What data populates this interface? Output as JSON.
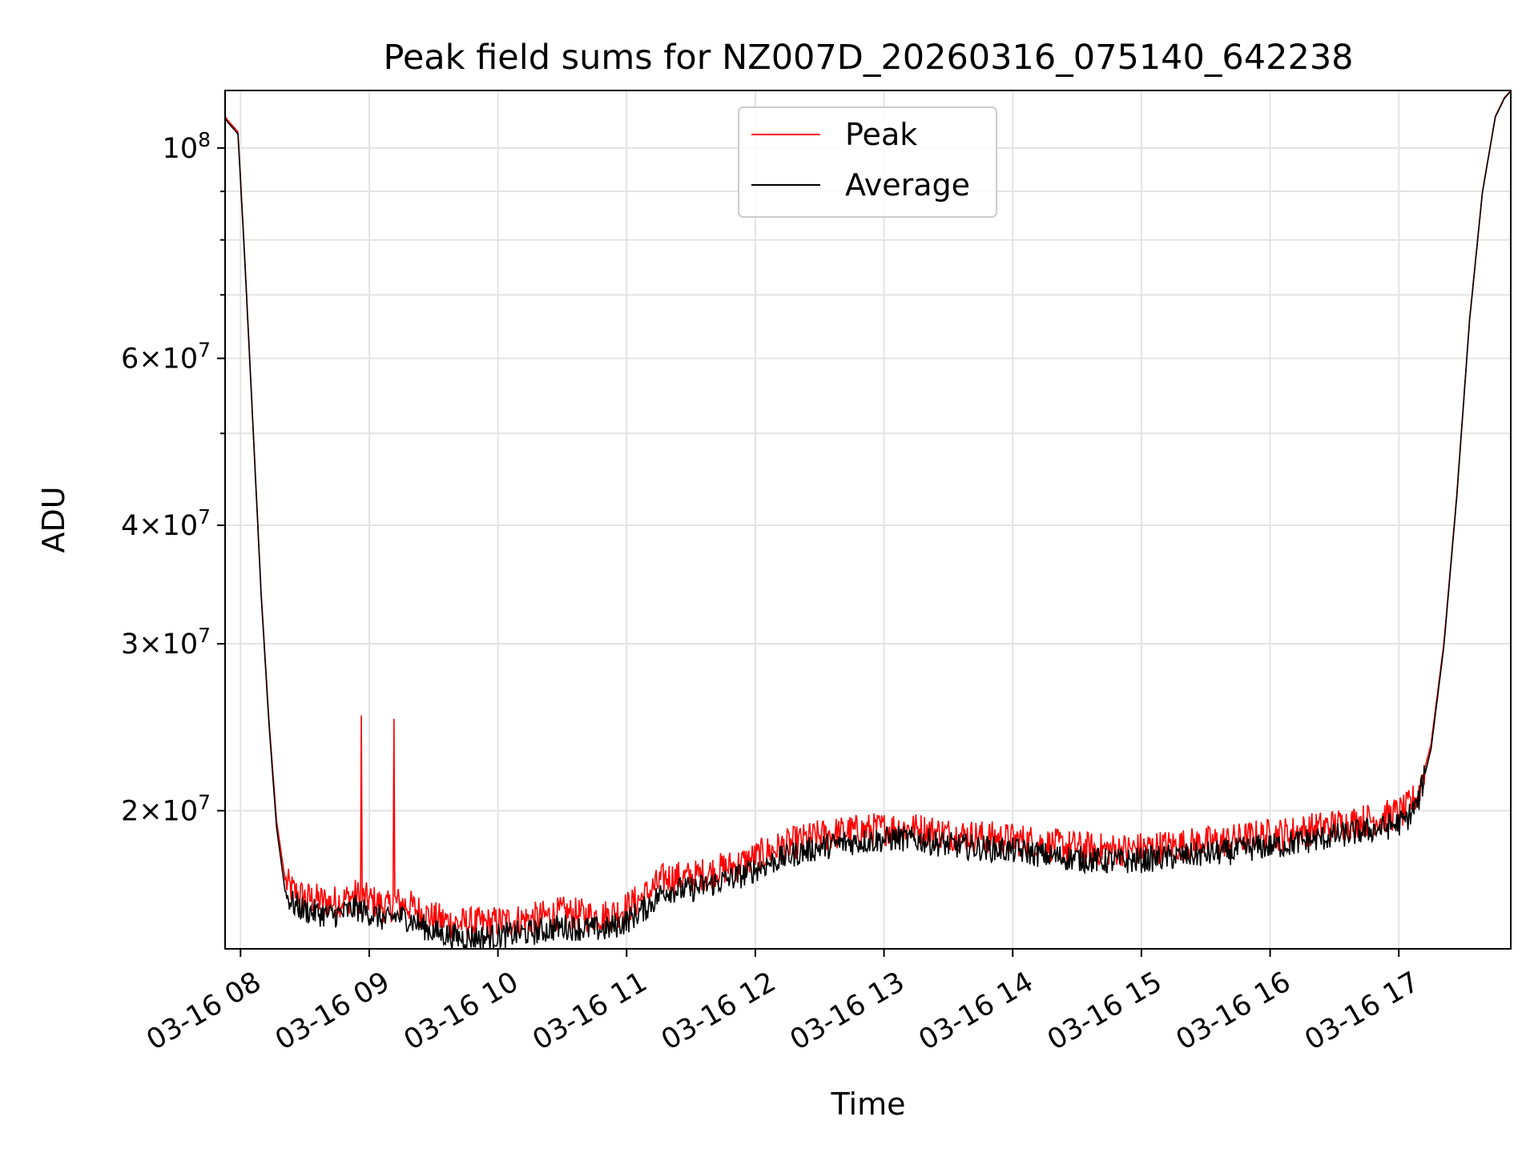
{
  "chart_data": {
    "type": "line",
    "title": "Peak field sums for NZ007D_20260316_075140_642238",
    "xlabel": "Time",
    "ylabel": "ADU",
    "yscale": "log",
    "grid": true,
    "legend_position": "top-center",
    "colors": {
      "peak": "#ff0000",
      "average": "#000000",
      "grid": "#e3e3e3"
    },
    "x_unit": "hour of day (2026-03-16)",
    "xlim": [
      7.88,
      17.87
    ],
    "ylim": [
      14300000,
      115000000
    ],
    "x_tick_values": [
      8,
      9,
      10,
      11,
      12,
      13,
      14,
      15,
      16,
      17
    ],
    "x_tick_labels": [
      "03-16 08",
      "03-16 09",
      "03-16 10",
      "03-16 11",
      "03-16 12",
      "03-16 13",
      "03-16 14",
      "03-16 15",
      "03-16 16",
      "03-16 17"
    ],
    "y_ticks": [
      {
        "value": 20000000,
        "mantissa": "2",
        "exponent": "7"
      },
      {
        "value": 30000000,
        "mantissa": "3",
        "exponent": "7"
      },
      {
        "value": 40000000,
        "mantissa": "4",
        "exponent": "7"
      },
      {
        "value": 60000000,
        "mantissa": "6",
        "exponent": "7"
      },
      {
        "value": 100000000,
        "mantissa": "",
        "exponent": "8"
      }
    ],
    "y_minor_ticks": [
      50000000,
      70000000,
      80000000,
      90000000
    ],
    "series": [
      {
        "name": "Peak",
        "x": [
          7.88,
          7.9,
          7.98,
          8.03,
          8.1,
          8.16,
          8.22,
          8.28,
          8.35,
          8.42,
          8.5,
          8.6,
          8.7,
          8.8,
          8.9,
          8.93,
          9.0,
          9.15,
          9.2,
          9.3,
          9.5,
          9.7,
          9.9,
          10.1,
          10.3,
          10.5,
          10.7,
          10.85,
          11.0,
          11.15,
          11.3,
          11.5,
          11.7,
          11.9,
          12.1,
          12.3,
          12.5,
          12.7,
          12.9,
          13.1,
          13.3,
          13.5,
          13.7,
          13.9,
          14.1,
          14.3,
          14.5,
          14.7,
          14.9,
          15.1,
          15.3,
          15.5,
          15.7,
          15.9,
          16.1,
          16.3,
          16.5,
          16.7,
          16.9,
          17.05,
          17.15,
          17.25,
          17.35,
          17.45,
          17.55,
          17.65,
          17.75,
          17.82,
          17.87
        ],
        "values": [
          108000000,
          107000000,
          104000000,
          78000000,
          50000000,
          34000000,
          25000000,
          19500000,
          16800000,
          16400000,
          16200000,
          16100000,
          16000000,
          16100000,
          16300000,
          16200000,
          16100000,
          15800000,
          16000000,
          15900000,
          15400000,
          15200000,
          15200000,
          15300000,
          15400000,
          15600000,
          15500000,
          15500000,
          15800000,
          16300000,
          17000000,
          17000000,
          17300000,
          17600000,
          18100000,
          18500000,
          18800000,
          19000000,
          19100000,
          19200000,
          19100000,
          18900000,
          18800000,
          18700000,
          18600000,
          18400000,
          18300000,
          18200000,
          18200000,
          18300000,
          18400000,
          18500000,
          18600000,
          18800000,
          18900000,
          19100000,
          19300000,
          19500000,
          19700000,
          20000000,
          20800000,
          23500000,
          30000000,
          43000000,
          66000000,
          90000000,
          108000000,
          113000000,
          115000000
        ],
        "spikes": [
          {
            "x": 8.94,
            "value": 25200000
          },
          {
            "x": 9.19,
            "value": 25000000
          }
        ]
      },
      {
        "name": "Average",
        "x": [
          7.88,
          7.9,
          7.98,
          8.03,
          8.1,
          8.16,
          8.22,
          8.28,
          8.35,
          8.42,
          8.5,
          8.6,
          8.7,
          8.8,
          8.9,
          8.93,
          9.0,
          9.15,
          9.2,
          9.3,
          9.5,
          9.7,
          9.9,
          10.1,
          10.3,
          10.5,
          10.7,
          10.85,
          11.0,
          11.15,
          11.3,
          11.5,
          11.7,
          11.9,
          12.1,
          12.3,
          12.5,
          12.7,
          12.9,
          13.1,
          13.3,
          13.5,
          13.7,
          13.9,
          14.1,
          14.3,
          14.5,
          14.7,
          14.9,
          15.1,
          15.3,
          15.5,
          15.7,
          15.9,
          16.1,
          16.3,
          16.5,
          16.7,
          16.9,
          17.05,
          17.15,
          17.25,
          17.35,
          17.45,
          17.55,
          17.65,
          17.75,
          17.82,
          17.87
        ],
        "values": [
          107500000,
          106500000,
          103500000,
          77500000,
          49800000,
          33800000,
          24800000,
          19200000,
          16300000,
          15900000,
          15700000,
          15600000,
          15500000,
          15600000,
          15800000,
          15700000,
          15600000,
          15300000,
          15500000,
          15400000,
          14900000,
          14700000,
          14700000,
          14800000,
          14900000,
          15100000,
          15000000,
          15000000,
          15300000,
          15800000,
          16500000,
          16500000,
          16800000,
          17100000,
          17600000,
          18000000,
          18300000,
          18500000,
          18600000,
          18700000,
          18600000,
          18400000,
          18300000,
          18200000,
          18100000,
          17900000,
          17800000,
          17700000,
          17700000,
          17800000,
          17900000,
          18000000,
          18100000,
          18300000,
          18400000,
          18600000,
          18800000,
          19000000,
          19200000,
          19500000,
          20400000,
          23200000,
          29800000,
          42800000,
          65800000,
          89800000,
          107800000,
          112800000,
          114800000
        ]
      }
    ]
  }
}
